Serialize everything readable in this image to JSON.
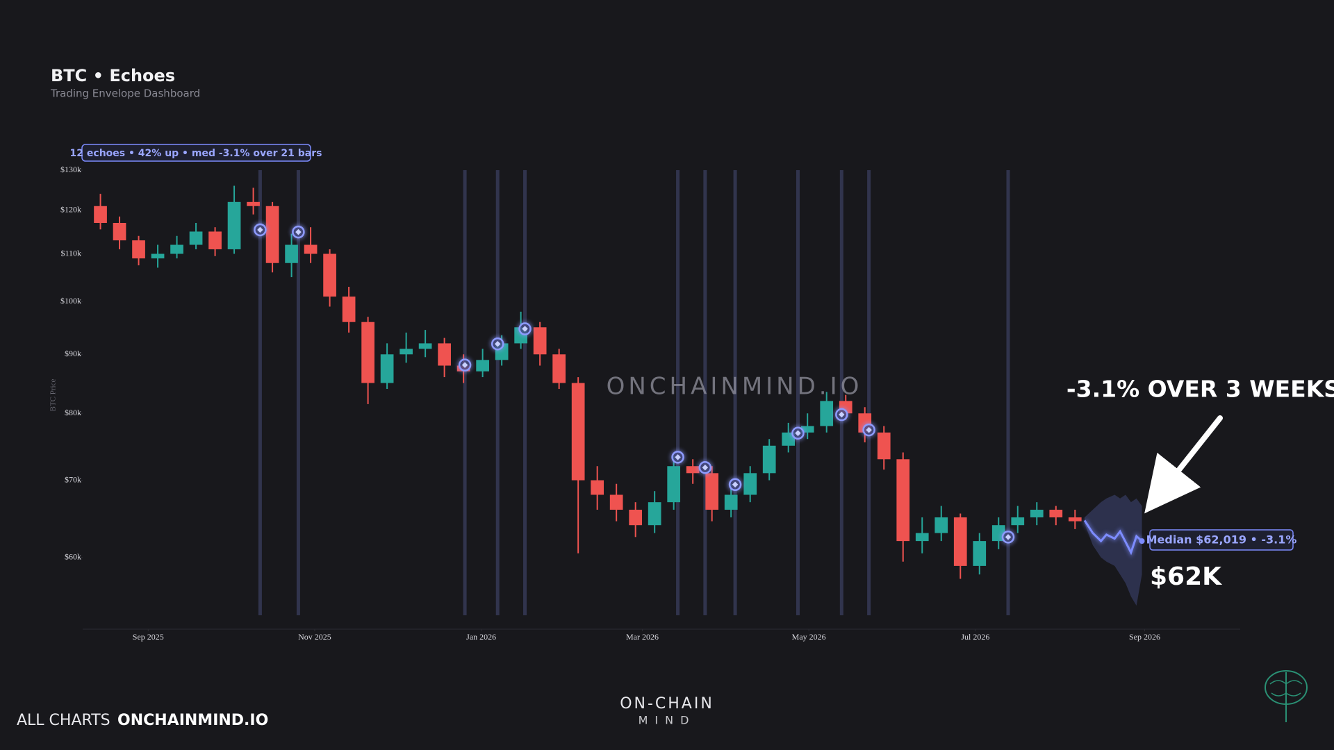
{
  "chart_data": {
    "type": "candlestick",
    "title": "BTC • Echoes",
    "subtitle": "Trading Envelope Dashboard",
    "y_label": "BTC Price",
    "summary": "12 echoes • 42% up • med -3.1% over 21 bars",
    "median_label": "Median $62,019 • -3.1%",
    "headline": "-3.1% OVER 3 WEEKS",
    "target_label": "$62K",
    "watermark": "ONCHAINMIND.IO",
    "log_scale": true,
    "grid": false,
    "up_color": "#26a69a",
    "down_color": "#ef5350",
    "echo_color": "#8e9bff",
    "xlim": [
      "2025-08-08",
      "2026-10-06"
    ],
    "ylim": [
      52000,
      130000
    ],
    "xticks": [
      {
        "value": "2025-09-01",
        "label": "Sep 2025"
      },
      {
        "value": "2025-11-01",
        "label": "Nov 2025"
      },
      {
        "value": "2026-01-01",
        "label": "Jan 2026"
      },
      {
        "value": "2026-03-01",
        "label": "Mar 2026"
      },
      {
        "value": "2026-05-01",
        "label": "May 2026"
      },
      {
        "value": "2026-07-01",
        "label": "Jul 2026"
      },
      {
        "value": "2026-09-01",
        "label": "Sep 2026"
      }
    ],
    "yticks": [
      {
        "value": 60000,
        "label": "$60k"
      },
      {
        "value": 70000,
        "label": "$70k"
      },
      {
        "value": 80000,
        "label": "$80k"
      },
      {
        "value": 90000,
        "label": "$90k"
      },
      {
        "value": 100000,
        "label": "$100k"
      },
      {
        "value": 110000,
        "label": "$110k"
      },
      {
        "value": 120000,
        "label": "$120k"
      },
      {
        "value": 130000,
        "label": "$130k"
      }
    ],
    "x": [
      "2025-08-11",
      "2025-08-18",
      "2025-08-25",
      "2025-09-01",
      "2025-09-08",
      "2025-09-15",
      "2025-09-22",
      "2025-09-29",
      "2025-10-06",
      "2025-10-13",
      "2025-10-20",
      "2025-10-27",
      "2025-11-03",
      "2025-11-10",
      "2025-11-17",
      "2025-11-24",
      "2025-12-01",
      "2025-12-08",
      "2025-12-15",
      "2025-12-22",
      "2025-12-29",
      "2026-01-05",
      "2026-01-12",
      "2026-01-19",
      "2026-01-26",
      "2026-02-02",
      "2026-02-09",
      "2026-02-16",
      "2026-02-23",
      "2026-03-02",
      "2026-03-09",
      "2026-03-16",
      "2026-03-23",
      "2026-03-30",
      "2026-04-06",
      "2026-04-13",
      "2026-04-20",
      "2026-04-27",
      "2026-05-04",
      "2026-05-11",
      "2026-05-18",
      "2026-05-25",
      "2026-06-01",
      "2026-06-08",
      "2026-06-15",
      "2026-06-22",
      "2026-06-29",
      "2026-07-06",
      "2026-07-13",
      "2026-07-20",
      "2026-07-27",
      "2026-08-03"
    ],
    "open": [
      121000,
      117000,
      113000,
      109000,
      110000,
      112000,
      115000,
      111000,
      122000,
      121000,
      108000,
      112000,
      110000,
      101000,
      96000,
      85000,
      90000,
      91000,
      92000,
      88000,
      87000,
      89000,
      92000,
      95000,
      90000,
      85000,
      70000,
      68000,
      66000,
      64000,
      67000,
      72000,
      71000,
      66000,
      68000,
      71000,
      75000,
      77000,
      78000,
      82000,
      80000,
      77000,
      73000,
      62000,
      63000,
      65000,
      59000,
      62000,
      64000,
      65000,
      66000,
      65000
    ],
    "high": [
      124000,
      118500,
      114000,
      112000,
      114000,
      117000,
      116000,
      126000,
      125500,
      122000,
      114500,
      116000,
      111000,
      103000,
      97000,
      92000,
      94000,
      94500,
      93000,
      90000,
      91000,
      93500,
      98000,
      96000,
      91000,
      86000,
      72000,
      69500,
      67000,
      68500,
      73500,
      73000,
      72000,
      69500,
      72000,
      76000,
      78500,
      80000,
      83500,
      83000,
      81000,
      78000,
      74000,
      65000,
      66500,
      65500,
      63000,
      65000,
      66500,
      67000,
      66500,
      66000
    ],
    "low": [
      115500,
      111000,
      107500,
      107000,
      109000,
      111000,
      109500,
      110000,
      119000,
      106000,
      105000,
      108000,
      99000,
      94000,
      81500,
      84000,
      88500,
      89500,
      86000,
      85000,
      86000,
      88000,
      91000,
      88000,
      84000,
      60500,
      66000,
      64500,
      62500,
      63000,
      66000,
      69500,
      64500,
      65000,
      67000,
      70000,
      74000,
      76000,
      77000,
      79000,
      75500,
      71500,
      59500,
      60500,
      62000,
      57500,
      58000,
      61000,
      63000,
      64000,
      64000,
      63500
    ],
    "close": [
      117000,
      113000,
      109000,
      110000,
      112000,
      115000,
      111000,
      122000,
      121000,
      108000,
      112000,
      110000,
      101000,
      96000,
      85000,
      90000,
      91000,
      92000,
      88000,
      87000,
      89000,
      92000,
      95000,
      90000,
      85000,
      70000,
      68000,
      66000,
      64000,
      67000,
      72000,
      71000,
      66000,
      68000,
      71000,
      75000,
      77000,
      78000,
      82000,
      80000,
      77000,
      73000,
      62000,
      63000,
      65000,
      59000,
      62000,
      64000,
      65000,
      66000,
      65000,
      64500
    ],
    "echoes": {
      "x": [
        "2025-10-12",
        "2025-10-26",
        "2025-12-26",
        "2026-01-07",
        "2026-01-17",
        "2026-03-14",
        "2026-03-24",
        "2026-04-04",
        "2026-04-27",
        "2026-05-13",
        "2026-05-23",
        "2026-07-13"
      ],
      "values": [
        115400,
        114900,
        88100,
        91900,
        94700,
        73300,
        71800,
        69400,
        76900,
        79800,
        77400,
        62500
      ]
    },
    "forecast": {
      "color": "#7d8cff",
      "x": [
        "2026-08-10",
        "2026-08-13",
        "2026-08-16",
        "2026-08-18",
        "2026-08-21",
        "2026-08-23",
        "2026-08-25",
        "2026-08-27",
        "2026-08-29",
        "2026-08-31"
      ],
      "median": [
        64600,
        63000,
        62000,
        62800,
        62300,
        63200,
        61900,
        60600,
        62600,
        62000
      ],
      "upper": [
        65000,
        66000,
        67000,
        67500,
        68000,
        67500,
        68000,
        67000,
        67500,
        66500
      ],
      "lower": [
        64200,
        61500,
        60000,
        59500,
        59000,
        58000,
        57000,
        55500,
        54500,
        58000
      ]
    }
  },
  "footer": {
    "link_label": "ALL CHARTS",
    "site": "ONCHAINMIND.IO",
    "brand_top": "ON-CHAIN",
    "brand_bottom": "MIND"
  }
}
